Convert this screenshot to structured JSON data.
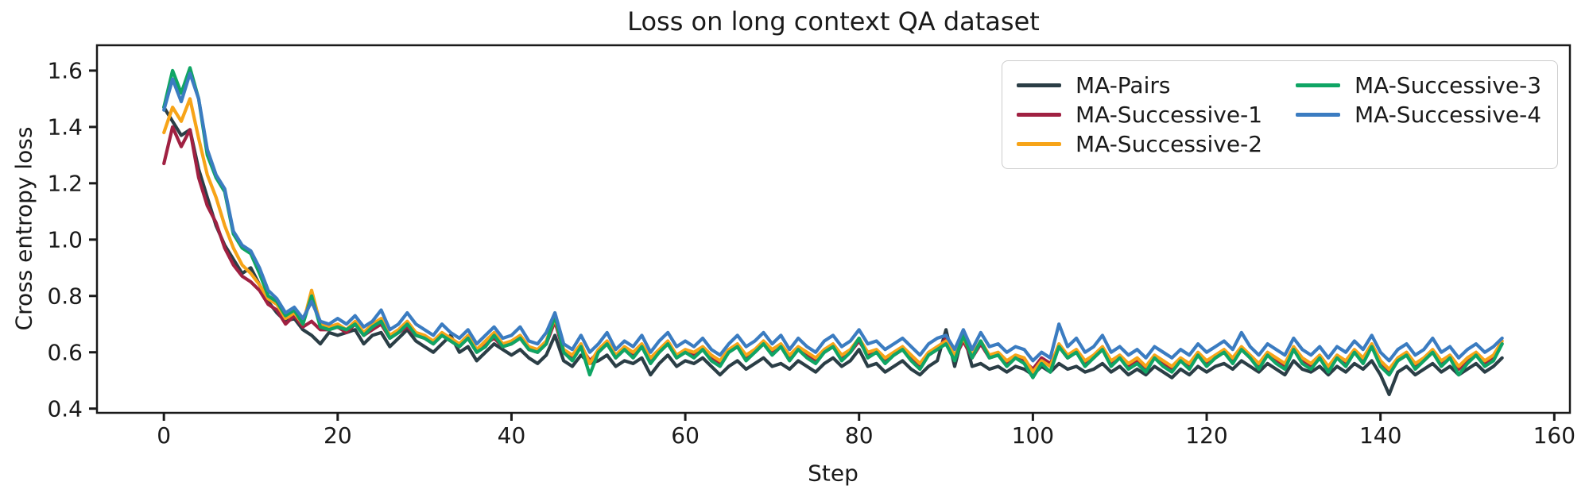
{
  "figure": {
    "background": "#ffffff",
    "plot_background": "#ffffff"
  },
  "chart_data": {
    "type": "line",
    "title": "Loss on long context QA dataset",
    "xlabel": "Step",
    "ylabel": "Cross entropy loss",
    "xlim": [
      -7.7,
      161.8
    ],
    "ylim": [
      0.385,
      1.69
    ],
    "x_ticks": [
      0,
      20,
      40,
      60,
      80,
      100,
      120,
      140,
      160
    ],
    "y_ticks": [
      0.4,
      0.6,
      0.8,
      1.0,
      1.2,
      1.4,
      1.6
    ],
    "grid": false,
    "legend_position": "upper right, 2 columns",
    "axis_color": "#1a1a1a",
    "x": {
      "start": 0,
      "step": 1
    },
    "series": [
      {
        "name": "MA-Pairs",
        "color": "#2B3E46",
        "values": [
          1.47,
          1.42,
          1.37,
          1.39,
          1.25,
          1.15,
          1.05,
          0.98,
          0.93,
          0.88,
          0.9,
          0.84,
          0.78,
          0.74,
          0.71,
          0.72,
          0.68,
          0.66,
          0.63,
          0.67,
          0.66,
          0.67,
          0.68,
          0.63,
          0.66,
          0.67,
          0.62,
          0.65,
          0.68,
          0.64,
          0.62,
          0.6,
          0.63,
          0.66,
          0.6,
          0.62,
          0.57,
          0.6,
          0.63,
          0.61,
          0.59,
          0.61,
          0.58,
          0.56,
          0.59,
          0.66,
          0.57,
          0.55,
          0.59,
          0.56,
          0.57,
          0.59,
          0.55,
          0.57,
          0.56,
          0.58,
          0.52,
          0.56,
          0.59,
          0.55,
          0.57,
          0.56,
          0.58,
          0.55,
          0.52,
          0.55,
          0.57,
          0.54,
          0.56,
          0.58,
          0.55,
          0.56,
          0.54,
          0.57,
          0.55,
          0.53,
          0.56,
          0.58,
          0.55,
          0.57,
          0.61,
          0.55,
          0.56,
          0.53,
          0.55,
          0.57,
          0.54,
          0.52,
          0.55,
          0.57,
          0.68,
          0.55,
          0.67,
          0.55,
          0.56,
          0.54,
          0.55,
          0.53,
          0.55,
          0.54,
          0.52,
          0.55,
          0.53,
          0.56,
          0.54,
          0.55,
          0.53,
          0.54,
          0.56,
          0.53,
          0.55,
          0.52,
          0.54,
          0.52,
          0.55,
          0.53,
          0.51,
          0.54,
          0.52,
          0.55,
          0.53,
          0.55,
          0.56,
          0.54,
          0.57,
          0.55,
          0.53,
          0.56,
          0.54,
          0.52,
          0.57,
          0.54,
          0.53,
          0.55,
          0.52,
          0.55,
          0.53,
          0.56,
          0.54,
          0.57,
          0.52,
          0.45,
          0.53,
          0.55,
          0.52,
          0.54,
          0.56,
          0.53,
          0.55,
          0.52,
          0.54,
          0.56,
          0.53,
          0.55,
          0.58
        ]
      },
      {
        "name": "MA-Successive-1",
        "color": "#A02142",
        "values": [
          1.27,
          1.4,
          1.33,
          1.39,
          1.22,
          1.12,
          1.06,
          0.97,
          0.91,
          0.87,
          0.85,
          0.82,
          0.77,
          0.75,
          0.7,
          0.73,
          0.69,
          0.71,
          0.68,
          0.68,
          0.69,
          0.67,
          0.7,
          0.66,
          0.68,
          0.7,
          0.65,
          0.67,
          0.69,
          0.66,
          0.65,
          0.63,
          0.66,
          0.64,
          0.62,
          0.65,
          0.6,
          0.63,
          0.65,
          0.62,
          0.63,
          0.65,
          0.61,
          0.6,
          0.63,
          0.71,
          0.6,
          0.58,
          0.62,
          0.57,
          0.6,
          0.63,
          0.58,
          0.61,
          0.59,
          0.62,
          0.57,
          0.6,
          0.63,
          0.58,
          0.6,
          0.59,
          0.61,
          0.58,
          0.56,
          0.6,
          0.62,
          0.58,
          0.6,
          0.63,
          0.6,
          0.62,
          0.58,
          0.61,
          0.59,
          0.57,
          0.6,
          0.62,
          0.58,
          0.6,
          0.64,
          0.59,
          0.6,
          0.57,
          0.59,
          0.61,
          0.58,
          0.55,
          0.59,
          0.61,
          0.65,
          0.58,
          0.64,
          0.58,
          0.63,
          0.58,
          0.59,
          0.56,
          0.58,
          0.57,
          0.54,
          0.58,
          0.56,
          0.62,
          0.58,
          0.6,
          0.56,
          0.58,
          0.61,
          0.56,
          0.58,
          0.55,
          0.57,
          0.54,
          0.58,
          0.56,
          0.54,
          0.57,
          0.55,
          0.59,
          0.56,
          0.58,
          0.6,
          0.57,
          0.61,
          0.58,
          0.55,
          0.59,
          0.57,
          0.55,
          0.61,
          0.57,
          0.55,
          0.58,
          0.54,
          0.58,
          0.56,
          0.6,
          0.57,
          0.62,
          0.56,
          0.53,
          0.57,
          0.59,
          0.55,
          0.57,
          0.6,
          0.56,
          0.58,
          0.54,
          0.57,
          0.59,
          0.56,
          0.58,
          0.63
        ]
      },
      {
        "name": "MA-Successive-2",
        "color": "#F7A418",
        "values": [
          1.38,
          1.47,
          1.42,
          1.5,
          1.36,
          1.23,
          1.15,
          1.05,
          0.97,
          0.91,
          0.88,
          0.84,
          0.79,
          0.77,
          0.72,
          0.74,
          0.7,
          0.82,
          0.7,
          0.69,
          0.7,
          0.68,
          0.71,
          0.67,
          0.7,
          0.72,
          0.66,
          0.68,
          0.71,
          0.67,
          0.66,
          0.64,
          0.67,
          0.65,
          0.63,
          0.66,
          0.61,
          0.64,
          0.67,
          0.63,
          0.64,
          0.66,
          0.62,
          0.61,
          0.64,
          0.72,
          0.61,
          0.59,
          0.63,
          0.56,
          0.61,
          0.64,
          0.59,
          0.62,
          0.6,
          0.63,
          0.58,
          0.61,
          0.64,
          0.59,
          0.61,
          0.6,
          0.62,
          0.59,
          0.57,
          0.61,
          0.63,
          0.59,
          0.61,
          0.64,
          0.61,
          0.63,
          0.59,
          0.62,
          0.6,
          0.58,
          0.61,
          0.63,
          0.59,
          0.61,
          0.65,
          0.6,
          0.61,
          0.58,
          0.6,
          0.62,
          0.59,
          0.56,
          0.6,
          0.62,
          0.64,
          0.59,
          0.65,
          0.59,
          0.64,
          0.59,
          0.6,
          0.57,
          0.59,
          0.58,
          0.53,
          0.57,
          0.55,
          0.63,
          0.59,
          0.61,
          0.57,
          0.59,
          0.62,
          0.57,
          0.59,
          0.56,
          0.58,
          0.55,
          0.59,
          0.57,
          0.55,
          0.58,
          0.56,
          0.6,
          0.57,
          0.59,
          0.61,
          0.58,
          0.62,
          0.59,
          0.56,
          0.6,
          0.58,
          0.56,
          0.62,
          0.58,
          0.56,
          0.59,
          0.55,
          0.59,
          0.57,
          0.61,
          0.58,
          0.63,
          0.57,
          0.54,
          0.58,
          0.6,
          0.56,
          0.58,
          0.61,
          0.57,
          0.59,
          0.55,
          0.58,
          0.6,
          0.57,
          0.59,
          0.64
        ]
      },
      {
        "name": "MA-Successive-3",
        "color": "#0FA564",
        "values": [
          1.47,
          1.6,
          1.52,
          1.61,
          1.5,
          1.3,
          1.22,
          1.17,
          1.02,
          0.97,
          0.95,
          0.88,
          0.8,
          0.78,
          0.73,
          0.75,
          0.7,
          0.8,
          0.69,
          0.68,
          0.69,
          0.68,
          0.7,
          0.66,
          0.69,
          0.71,
          0.65,
          0.67,
          0.7,
          0.66,
          0.65,
          0.63,
          0.66,
          0.64,
          0.62,
          0.65,
          0.6,
          0.62,
          0.66,
          0.62,
          0.63,
          0.65,
          0.61,
          0.6,
          0.63,
          0.73,
          0.6,
          0.57,
          0.62,
          0.52,
          0.6,
          0.63,
          0.58,
          0.61,
          0.58,
          0.62,
          0.56,
          0.6,
          0.63,
          0.58,
          0.6,
          0.58,
          0.61,
          0.57,
          0.55,
          0.6,
          0.62,
          0.57,
          0.6,
          0.63,
          0.59,
          0.62,
          0.57,
          0.61,
          0.58,
          0.56,
          0.6,
          0.62,
          0.57,
          0.6,
          0.65,
          0.58,
          0.6,
          0.56,
          0.59,
          0.61,
          0.57,
          0.54,
          0.59,
          0.61,
          0.63,
          0.57,
          0.66,
          0.58,
          0.64,
          0.58,
          0.59,
          0.55,
          0.58,
          0.56,
          0.51,
          0.56,
          0.53,
          0.62,
          0.58,
          0.6,
          0.55,
          0.58,
          0.61,
          0.55,
          0.58,
          0.54,
          0.56,
          0.53,
          0.58,
          0.55,
          0.53,
          0.57,
          0.54,
          0.59,
          0.55,
          0.58,
          0.6,
          0.56,
          0.61,
          0.58,
          0.54,
          0.59,
          0.56,
          0.54,
          0.61,
          0.56,
          0.54,
          0.58,
          0.53,
          0.58,
          0.55,
          0.6,
          0.56,
          0.62,
          0.55,
          0.52,
          0.57,
          0.59,
          0.54,
          0.57,
          0.6,
          0.55,
          0.58,
          0.52,
          0.56,
          0.59,
          0.55,
          0.57,
          0.63
        ]
      },
      {
        "name": "MA-Successive-4",
        "color": "#3B7CC1",
        "values": [
          1.46,
          1.57,
          1.49,
          1.59,
          1.5,
          1.32,
          1.23,
          1.18,
          1.03,
          0.98,
          0.96,
          0.9,
          0.82,
          0.79,
          0.74,
          0.76,
          0.72,
          0.78,
          0.71,
          0.7,
          0.72,
          0.7,
          0.73,
          0.69,
          0.71,
          0.75,
          0.68,
          0.7,
          0.74,
          0.7,
          0.68,
          0.66,
          0.7,
          0.67,
          0.65,
          0.68,
          0.63,
          0.66,
          0.69,
          0.65,
          0.66,
          0.69,
          0.64,
          0.63,
          0.67,
          0.74,
          0.63,
          0.61,
          0.66,
          0.6,
          0.63,
          0.67,
          0.61,
          0.64,
          0.62,
          0.66,
          0.6,
          0.64,
          0.67,
          0.62,
          0.64,
          0.62,
          0.65,
          0.61,
          0.59,
          0.63,
          0.66,
          0.62,
          0.64,
          0.67,
          0.63,
          0.66,
          0.61,
          0.65,
          0.62,
          0.6,
          0.64,
          0.66,
          0.62,
          0.64,
          0.68,
          0.63,
          0.64,
          0.61,
          0.63,
          0.65,
          0.62,
          0.59,
          0.63,
          0.65,
          0.66,
          0.61,
          0.68,
          0.61,
          0.67,
          0.62,
          0.63,
          0.6,
          0.62,
          0.61,
          0.57,
          0.6,
          0.58,
          0.7,
          0.62,
          0.65,
          0.6,
          0.62,
          0.66,
          0.6,
          0.62,
          0.59,
          0.61,
          0.58,
          0.62,
          0.6,
          0.58,
          0.61,
          0.59,
          0.63,
          0.6,
          0.62,
          0.64,
          0.61,
          0.67,
          0.62,
          0.59,
          0.63,
          0.61,
          0.59,
          0.65,
          0.61,
          0.59,
          0.62,
          0.58,
          0.62,
          0.6,
          0.64,
          0.61,
          0.66,
          0.6,
          0.57,
          0.61,
          0.63,
          0.59,
          0.61,
          0.65,
          0.6,
          0.62,
          0.58,
          0.61,
          0.63,
          0.6,
          0.62,
          0.65
        ]
      }
    ]
  }
}
